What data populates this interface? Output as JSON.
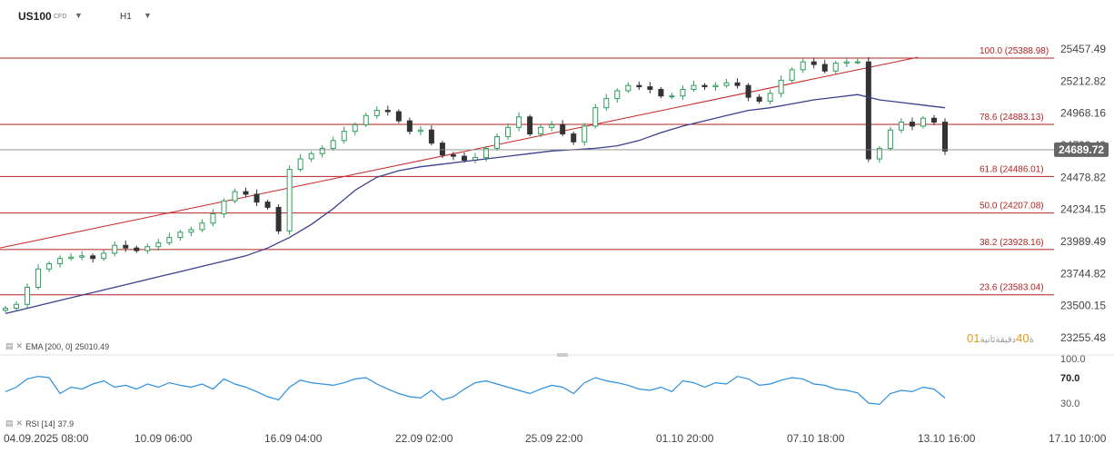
{
  "header": {
    "symbol": "US100",
    "symbol_type": "CFD",
    "timeframe": "H1",
    "dropdown_icon": "caret-down-icon"
  },
  "indicators": {
    "ema_label": "EMA [200, 0]",
    "ema_value": "25010.49",
    "rsi_label": "RSI [14]",
    "rsi_value": "37.9",
    "icon_names": [
      "bars-icon",
      "close-icon"
    ]
  },
  "countdown": {
    "seg1": "01",
    "lbl1": "ة",
    "seg2": "40",
    "lbl2": "دقيقة",
    "lbl3": "ثانية"
  },
  "colors": {
    "background": "#ffffff",
    "candle_up": "#2e9e5b",
    "candle_down": "#333333",
    "fib_line": "#b22222",
    "trend_line": "#cc2222",
    "ema_line": "#3a3f8f",
    "rsi_line": "#2b8fe0",
    "price_badge": "#666666"
  },
  "chart_data": {
    "type": "candlestick",
    "price_axis_ticks": [
      25457.49,
      25212.82,
      24968.16,
      24723.49,
      24478.82,
      24234.15,
      23989.49,
      23744.82,
      23500.15,
      23255.48
    ],
    "price_axis_tick_labels": [
      "25457.49",
      "25212.82",
      "24968.16",
      "24723.49",
      "24478.82",
      "24234.15",
      "23989.49",
      "23744.82",
      "23500.15",
      "23255.48"
    ],
    "price_range": [
      23255.48,
      25555
    ],
    "current_price": 24689.72,
    "current_price_label": "24689.72",
    "time_axis_labels": [
      "04.09.2025 08:00",
      "10.09 06:00",
      "16.09 04:00",
      "22.09 02:00",
      "25.09 22:00",
      "01.10 20:00",
      "07.10 18:00",
      "13.10 16:00",
      "17.10 10:00"
    ],
    "fibonacci_levels": [
      {
        "label": "100.0 (25388.98)",
        "value": 25388.98
      },
      {
        "label": "78.6 (24883.13)",
        "value": 24883.13
      },
      {
        "label": "61.8 (24486.01)",
        "value": 24486.01
      },
      {
        "label": "50.0 (24207.08)",
        "value": 24207.08
      },
      {
        "label": "38.2 (23928.16)",
        "value": 23928.16
      },
      {
        "label": "23.6 (23583.04)",
        "value": 23583.04
      }
    ],
    "trendline": [
      {
        "x": 0,
        "price": 23940
      },
      {
        "x": 1010,
        "price": 25395
      }
    ],
    "close_series": [
      23480,
      23510,
      23640,
      23780,
      23820,
      23860,
      23870,
      23880,
      23860,
      23900,
      23960,
      23940,
      23920,
      23950,
      23980,
      24020,
      24060,
      24080,
      24130,
      24200,
      24300,
      24370,
      24350,
      24290,
      24250,
      24070,
      24540,
      24620,
      24660,
      24700,
      24760,
      24830,
      24880,
      24950,
      24990,
      24980,
      24910,
      24830,
      24840,
      24740,
      24650,
      24640,
      24610,
      24630,
      24700,
      24790,
      24860,
      24940,
      24810,
      24860,
      24880,
      24810,
      24750,
      24870,
      25010,
      25080,
      25140,
      25180,
      25170,
      25150,
      25100,
      25100,
      25150,
      25180,
      25170,
      25180,
      25200,
      25180,
      25090,
      25060,
      25120,
      25220,
      25300,
      25360,
      25340,
      25290,
      25350,
      25360,
      25360,
      24620,
      24700,
      24840,
      24900,
      24870,
      24930,
      24900,
      24680
    ],
    "ema_series": [
      23440,
      23480,
      23520,
      23560,
      23600,
      23640,
      23680,
      23720,
      23760,
      23800,
      23840,
      23880,
      23940,
      24020,
      24120,
      24240,
      24380,
      24480,
      24530,
      24560,
      24580,
      24600,
      24620,
      24640,
      24660,
      24680,
      24690,
      24700,
      24720,
      24760,
      24820,
      24870,
      24910,
      24950,
      24990,
      25010,
      25040,
      25070,
      25090,
      25110,
      25070,
      25050,
      25030,
      25010
    ],
    "rsi_range": [
      0,
      100
    ],
    "rsi_ticks": [
      100.0,
      70.0,
      30.0
    ],
    "rsi_tick_labels": [
      "100.0",
      "70.0",
      "30.0"
    ],
    "rsi_series": [
      48,
      55,
      68,
      72,
      70,
      45,
      55,
      52,
      60,
      65,
      55,
      58,
      52,
      60,
      55,
      62,
      58,
      55,
      60,
      52,
      68,
      60,
      55,
      48,
      40,
      35,
      55,
      66,
      62,
      60,
      58,
      62,
      68,
      70,
      60,
      52,
      45,
      40,
      38,
      50,
      35,
      40,
      52,
      62,
      65,
      60,
      55,
      50,
      45,
      52,
      58,
      55,
      45,
      62,
      70,
      65,
      62,
      58,
      52,
      50,
      55,
      48,
      65,
      62,
      55,
      62,
      60,
      72,
      68,
      58,
      60,
      66,
      70,
      68,
      60,
      58,
      52,
      50,
      46,
      30,
      28,
      45,
      50,
      48,
      55,
      52,
      38
    ]
  }
}
